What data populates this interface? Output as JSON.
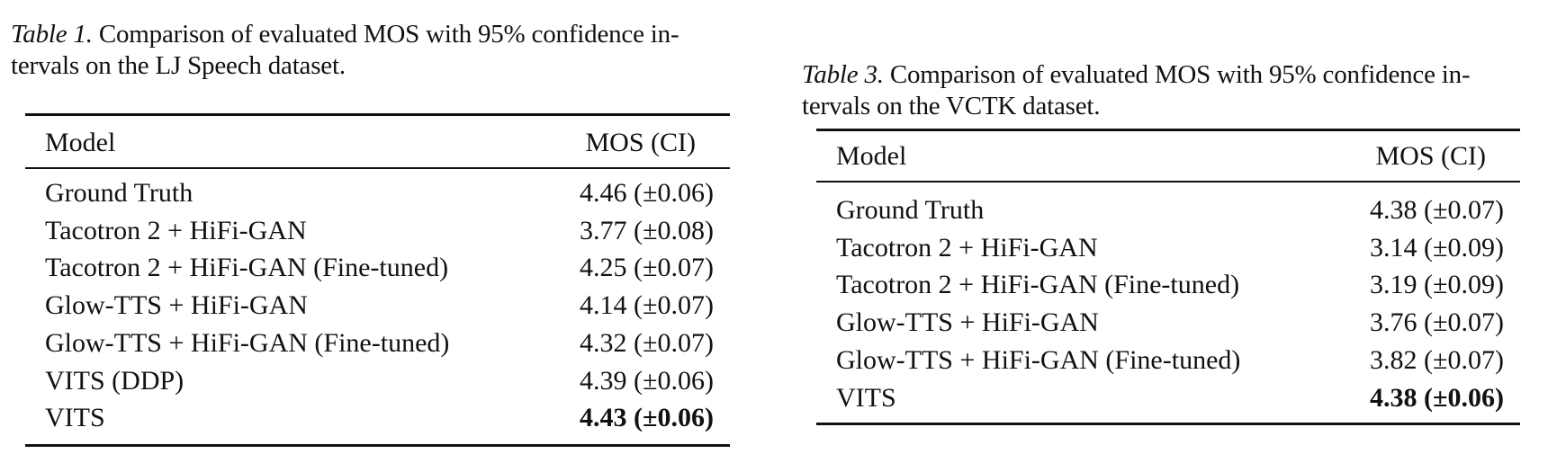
{
  "tables": [
    {
      "label": "Table 1.",
      "caption_line1": "Comparison of evaluated MOS with 95% confidence in-",
      "caption_line2": "tervals on the LJ Speech dataset.",
      "header": {
        "model": "Model",
        "mos": "MOS (CI)"
      },
      "rows": [
        {
          "model": "Ground Truth",
          "mos": "4.46 (±0.06)",
          "bold": false
        },
        {
          "model": "Tacotron 2 + HiFi-GAN",
          "mos": "3.77 (±0.08)",
          "bold": false
        },
        {
          "model": "Tacotron 2 + HiFi-GAN (Fine-tuned)",
          "mos": "4.25 (±0.07)",
          "bold": false
        },
        {
          "model": "Glow-TTS + HiFi-GAN",
          "mos": "4.14 (±0.07)",
          "bold": false
        },
        {
          "model": "Glow-TTS + HiFi-GAN (Fine-tuned)",
          "mos": "4.32 (±0.07)",
          "bold": false
        },
        {
          "model": "VITS (DDP)",
          "mos": "4.39 (±0.06)",
          "bold": false
        },
        {
          "model": "VITS",
          "mos": "4.43 (±0.06)",
          "bold": true
        }
      ]
    },
    {
      "label": "Table 3.",
      "caption_line1": "Comparison of evaluated MOS with 95% confidence in-",
      "caption_line2": "tervals on the VCTK dataset.",
      "header": {
        "model": "Model",
        "mos": "MOS (CI)"
      },
      "rows": [
        {
          "model": "Ground Truth",
          "mos": "4.38 (±0.07)",
          "bold": false
        },
        {
          "model": "Tacotron 2 + HiFi-GAN",
          "mos": "3.14 (±0.09)",
          "bold": false
        },
        {
          "model": "Tacotron 2 + HiFi-GAN (Fine-tuned)",
          "mos": "3.19 (±0.09)",
          "bold": false
        },
        {
          "model": "Glow-TTS + HiFi-GAN",
          "mos": "3.76 (±0.07)",
          "bold": false
        },
        {
          "model": "Glow-TTS + HiFi-GAN (Fine-tuned)",
          "mos": "3.82 (±0.07)",
          "bold": false
        },
        {
          "model": "VITS",
          "mos": "4.38 (±0.06)",
          "bold": true
        }
      ]
    }
  ]
}
